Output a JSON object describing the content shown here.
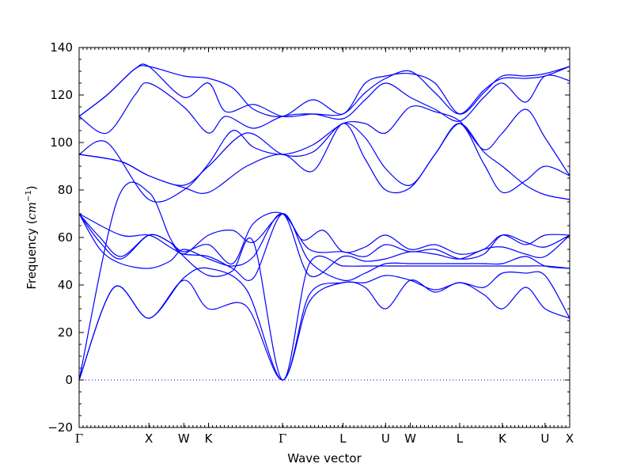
{
  "chart_data": {
    "type": "line",
    "title": "",
    "xlabel": "Wave vector",
    "ylabel_prefix": "Frequency (",
    "ylabel_unit": "cm",
    "ylabel_exp": "−1",
    "ylabel_suffix": ")",
    "ylim": [
      -20,
      140
    ],
    "yticks": [
      -20,
      0,
      20,
      40,
      60,
      80,
      100,
      120,
      140
    ],
    "grid": false,
    "line_color": "#0000ff",
    "zero_line": {
      "y": 0,
      "style": "dotted",
      "color": "#0000ff"
    },
    "k_points": [
      {
        "label": "Γ",
        "x": 0.0
      },
      {
        "label": "X",
        "x": 1.0
      },
      {
        "label": "W",
        "x": 1.5
      },
      {
        "label": "K",
        "x": 1.854
      },
      {
        "label": "Γ",
        "x": 2.915
      },
      {
        "label": "L",
        "x": 3.781
      },
      {
        "label": "U",
        "x": 4.393
      },
      {
        "label": "W",
        "x": 4.747
      },
      {
        "label": "L",
        "x": 5.454
      },
      {
        "label": "K",
        "x": 6.066
      },
      {
        "label": "U",
        "x": 6.678
      },
      {
        "label": "X",
        "x": 7.031
      }
    ],
    "series": [
      {
        "x": [
          0,
          0.5,
          1.0,
          1.5,
          1.854,
          2.4,
          2.915,
          3.3,
          3.781,
          4.1,
          4.393,
          4.747,
          5.1,
          5.454,
          5.8,
          6.066,
          6.4,
          6.678,
          7.031
        ],
        "values": [
          0,
          39,
          26,
          42,
          30,
          31,
          0,
          33,
          41,
          39,
          30,
          42,
          37,
          41,
          36,
          30,
          39,
          30,
          26
        ]
      },
      {
        "x": [
          0,
          0.5,
          1.0,
          1.5,
          1.854,
          2.4,
          2.915,
          3.3,
          3.781,
          4.1,
          4.393,
          4.747,
          5.1,
          5.454,
          5.8,
          6.066,
          6.4,
          6.678,
          7.031
        ],
        "values": [
          0,
          39,
          26,
          43,
          47,
          38,
          0,
          36,
          41,
          41,
          44,
          42,
          38,
          41,
          39,
          45,
          45,
          44,
          26
        ]
      },
      {
        "x": [
          0,
          0.55,
          1.0,
          1.3,
          1.5,
          1.854,
          2.2,
          2.5,
          2.915,
          3.3,
          3.781,
          4.1,
          4.393,
          4.747,
          5.1,
          5.454,
          5.8,
          6.066,
          6.4,
          6.678,
          7.031
        ],
        "values": [
          0,
          76,
          79,
          60,
          52,
          44,
          46,
          58,
          0,
          49,
          48,
          48,
          48,
          48,
          48,
          48,
          48,
          48,
          48,
          48,
          47
        ]
      },
      {
        "x": [
          0,
          0.3,
          0.6,
          1.0,
          1.3,
          1.5,
          1.854,
          2.2,
          2.5,
          2.915,
          3.3,
          3.781,
          4.1,
          4.393,
          4.747,
          5.1,
          5.454,
          5.8,
          6.066,
          6.4,
          6.678,
          7.031
        ],
        "values": [
          70,
          55,
          49,
          47,
          50,
          55,
          51,
          48,
          52,
          70,
          44,
          52,
          50,
          51,
          54,
          53,
          51,
          55,
          56,
          53,
          52,
          61
        ]
      },
      {
        "x": [
          0,
          0.3,
          0.6,
          1.0,
          1.3,
          1.5,
          1.854,
          2.2,
          2.5,
          2.915,
          3.3,
          3.781,
          4.1,
          4.393,
          4.747,
          5.1,
          5.454,
          5.8,
          6.066,
          6.4,
          6.678,
          7.031
        ],
        "values": [
          70,
          58,
          51,
          61,
          58,
          54,
          57,
          49,
          66,
          70,
          55,
          54,
          52,
          57,
          54,
          55,
          51,
          53,
          61,
          58,
          56,
          61
        ]
      },
      {
        "x": [
          0,
          0.3,
          0.6,
          1.0,
          1.3,
          1.5,
          1.854,
          2.2,
          2.5,
          2.915,
          3.2,
          3.5,
          3.781,
          4.1,
          4.393,
          4.747,
          5.1,
          5.454,
          5.8,
          6.066,
          6.4,
          6.678,
          7.031
        ],
        "values": [
          70,
          60,
          52,
          61,
          58,
          53,
          61,
          63,
          58,
          70,
          59,
          63,
          54,
          56,
          61,
          55,
          57,
          53,
          55,
          61,
          57,
          61,
          61
        ]
      },
      {
        "x": [
          0,
          0.6,
          1.0,
          1.3,
          1.5,
          1.854,
          2.2,
          2.5,
          2.915,
          3.3,
          3.781,
          4.1,
          4.393,
          4.747,
          5.1,
          5.454,
          5.8,
          6.066,
          6.4,
          6.678,
          7.031
        ],
        "values": [
          70,
          61,
          61,
          56,
          53,
          52,
          47,
          43,
          70,
          50,
          42,
          45,
          49,
          49,
          49,
          49,
          49,
          49,
          52,
          48,
          47
        ]
      },
      {
        "x": [
          0,
          0.6,
          1.0,
          1.5,
          1.854,
          2.4,
          2.915,
          3.35,
          3.781,
          4.1,
          4.393,
          4.747,
          5.1,
          5.454,
          5.8,
          6.066,
          6.4,
          6.678,
          7.031
        ],
        "values": [
          95,
          92,
          86,
          81,
          79,
          90,
          95,
          88,
          108,
          93,
          80,
          81,
          95,
          108,
          91,
          79,
          84,
          90,
          86
        ]
      },
      {
        "x": [
          0,
          0.6,
          1.0,
          1.5,
          1.854,
          2.4,
          2.915,
          3.35,
          3.781,
          4.1,
          4.393,
          4.747,
          5.1,
          5.454,
          5.8,
          6.066,
          6.4,
          6.678,
          7.031
        ],
        "values": [
          95,
          92,
          86,
          82,
          90,
          104,
          95,
          96,
          108,
          102,
          89,
          82,
          95,
          108,
          96,
          90,
          82,
          78,
          76
        ]
      },
      {
        "x": [
          0,
          0.4,
          1.0,
          1.5,
          1.854,
          2.2,
          2.5,
          2.915,
          3.35,
          3.781,
          4.1,
          4.393,
          4.747,
          5.1,
          5.454,
          5.8,
          6.066,
          6.4,
          6.678,
          7.031
        ],
        "values": [
          95,
          100,
          76,
          80,
          91,
          105,
          98,
          95,
          99,
          108,
          108,
          104,
          115,
          113,
          109,
          97,
          104,
          114,
          102,
          86
        ]
      },
      {
        "x": [
          0,
          0.4,
          0.8,
          1.0,
          1.5,
          1.854,
          2.1,
          2.5,
          2.915,
          3.35,
          3.781,
          4.1,
          4.393,
          4.747,
          5.1,
          5.454,
          5.8,
          6.066,
          6.4,
          6.678,
          7.031
        ],
        "values": [
          111,
          104,
          120,
          125,
          115,
          104,
          111,
          106,
          111,
          112,
          110,
          118,
          125,
          119,
          114,
          109,
          119,
          125,
          117,
          128,
          126
        ]
      },
      {
        "x": [
          0,
          0.4,
          0.8,
          1.0,
          1.5,
          1.854,
          2.1,
          2.5,
          2.915,
          3.35,
          3.781,
          4.1,
          4.393,
          4.747,
          5.1,
          5.454,
          5.8,
          6.066,
          6.4,
          6.678,
          7.031
        ],
        "values": [
          111,
          120,
          131,
          132,
          119,
          125,
          113,
          116,
          111,
          112,
          112,
          121,
          127,
          130,
          121,
          112,
          122,
          127,
          127,
          128,
          132
        ]
      },
      {
        "x": [
          0,
          0.4,
          0.8,
          1.0,
          1.5,
          1.854,
          2.2,
          2.5,
          2.915,
          3.35,
          3.781,
          4.1,
          4.393,
          4.747,
          5.1,
          5.454,
          5.8,
          6.066,
          6.4,
          6.678,
          7.031
        ],
        "values": [
          111,
          120,
          131,
          132,
          128,
          127,
          123,
          114,
          111,
          118,
          112,
          125,
          128,
          129,
          125,
          112,
          121,
          128,
          128,
          129,
          132
        ]
      }
    ]
  }
}
